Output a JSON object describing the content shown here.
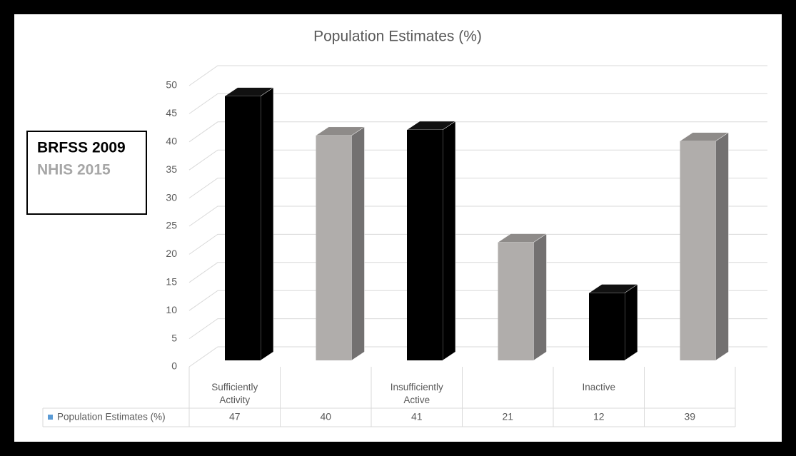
{
  "chart_data": {
    "type": "bar3d",
    "title": "Population Estimates (%)",
    "categories": [
      "Sufficiently Activity",
      null,
      "Insufficiently Active",
      null,
      "Inactive",
      null
    ],
    "series": [
      {
        "name": "Population Estimates (%)",
        "color": "#5b9bd5",
        "colors": [
          "#000000",
          "#b0adab",
          "#000000",
          "#b0adab",
          "#000000",
          "#b0adab"
        ],
        "values": [
          47,
          40,
          41,
          21,
          12,
          39
        ]
      }
    ],
    "ylim": [
      0,
      50
    ],
    "yticks": [
      0,
      5,
      10,
      15,
      20,
      25,
      30,
      35,
      40,
      45,
      50
    ],
    "grid": true,
    "data_table": true,
    "annotations": [
      {
        "text": "BRFSS 2009",
        "color": "#000000"
      },
      {
        "text": "NHIS 2015",
        "color": "#a6a6a6"
      }
    ]
  }
}
